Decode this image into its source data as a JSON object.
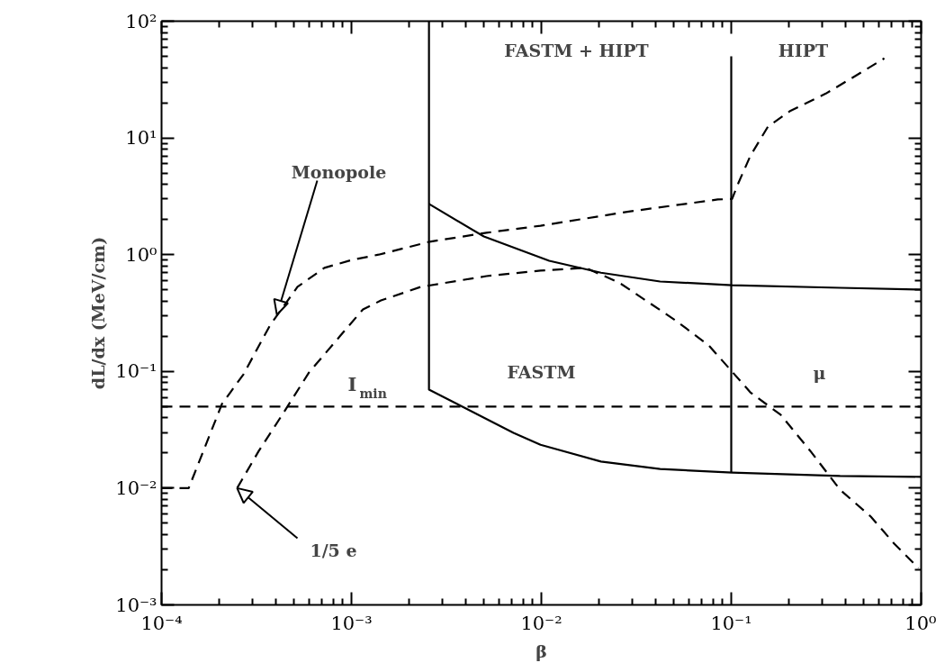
{
  "chart_data": {
    "type": "line",
    "xlabel": "β",
    "ylabel": "dL/dx (MeV/cm)",
    "log": "xy",
    "grid": false,
    "xlim": [
      0.0001,
      1
    ],
    "ylim": [
      0.001,
      100
    ],
    "xticks": [
      {
        "value": 0.0001,
        "label": "10⁻⁴"
      },
      {
        "value": 0.001,
        "label": "10⁻³"
      },
      {
        "value": 0.01,
        "label": "10⁻²"
      },
      {
        "value": 0.1,
        "label": "10⁻¹"
      },
      {
        "value": 1,
        "label": "10⁰"
      }
    ],
    "yticks": [
      {
        "value": 0.001,
        "label": "10⁻³"
      },
      {
        "value": 0.01,
        "label": "10⁻²"
      },
      {
        "value": 0.1,
        "label": "10⁻¹"
      },
      {
        "value": 1,
        "label": "10⁰"
      },
      {
        "value": 10,
        "label": "10¹"
      },
      {
        "value": 100,
        "label": "10²"
      }
    ],
    "series": [
      {
        "color": "#000000",
        "line_style": "dashed",
        "x": [
          0.0001,
          0.000139,
          0.000208,
          0.00027,
          0.000374,
          0.00052,
          0.00072,
          0.001,
          0.00139,
          0.00258,
          0.00514,
          0.0099,
          0.0294,
          0.0849,
          0.101,
          0.109,
          0.126,
          0.156,
          0.203,
          0.315,
          0.451,
          0.64
        ],
        "values": [
          0.01,
          0.01,
          0.0526,
          0.0944,
          0.251,
          0.53,
          0.77,
          0.9,
          1.0,
          1.29,
          1.54,
          1.77,
          2.35,
          2.97,
          3.0,
          4.1,
          7.0,
          12.5,
          16.9,
          24,
          34,
          48
        ]
      },
      {
        "color": "#000000",
        "line_style": "dashed",
        "x": [
          0.00025,
          0.000325,
          0.000432,
          0.000598,
          0.000867,
          0.00115,
          0.00143,
          0.00232,
          0.00514,
          0.0099,
          0.0171,
          0.0256,
          0.0355,
          0.0508,
          0.0762,
          0.101,
          0.126,
          0.182,
          0.261,
          0.374,
          0.543,
          0.721,
          0.968
        ],
        "values": [
          0.01,
          0.0208,
          0.0425,
          0.098,
          0.199,
          0.34,
          0.405,
          0.53,
          0.655,
          0.73,
          0.77,
          0.578,
          0.405,
          0.274,
          0.167,
          0.0995,
          0.0662,
          0.0425,
          0.0208,
          0.0097,
          0.0057,
          0.00335,
          0.00207
        ]
      },
      {
        "color": "#000000",
        "line_style": "solid",
        "x": [
          0.00256,
          0.00256,
          0.00713,
          0.0099,
          0.0206,
          0.0422,
          0.101,
          0.374,
          1.0
        ],
        "values": [
          100,
          0.0698,
          0.0298,
          0.0235,
          0.0169,
          0.0146,
          0.0136,
          0.0127,
          0.0125
        ]
      },
      {
        "color": "#000000",
        "line_style": "solid",
        "x": [
          0.00256,
          0.00498,
          0.011,
          0.0206,
          0.0422,
          0.101,
          0.374,
          1.0
        ],
        "values": [
          2.72,
          1.43,
          0.887,
          0.7,
          0.589,
          0.548,
          0.52,
          0.502
        ]
      },
      {
        "color": "#000000",
        "line_style": "solid",
        "x": [
          0.1,
          0.1
        ],
        "values": [
          50,
          0.0136
        ]
      },
      {
        "color": "#000000",
        "line_style": "dashed",
        "x": [
          0.0001,
          1
        ],
        "values": [
          0.05,
          0.05
        ]
      }
    ],
    "annotations": [
      {
        "text": "Monopole",
        "x": 0.000405,
        "y": 0.305
      },
      {
        "text": "1/5 e",
        "x": 0.00025,
        "y": 0.01
      },
      "I$_{min}$",
      "FASTM + HIPT",
      "HIPT",
      "FASTM",
      "μ"
    ]
  }
}
